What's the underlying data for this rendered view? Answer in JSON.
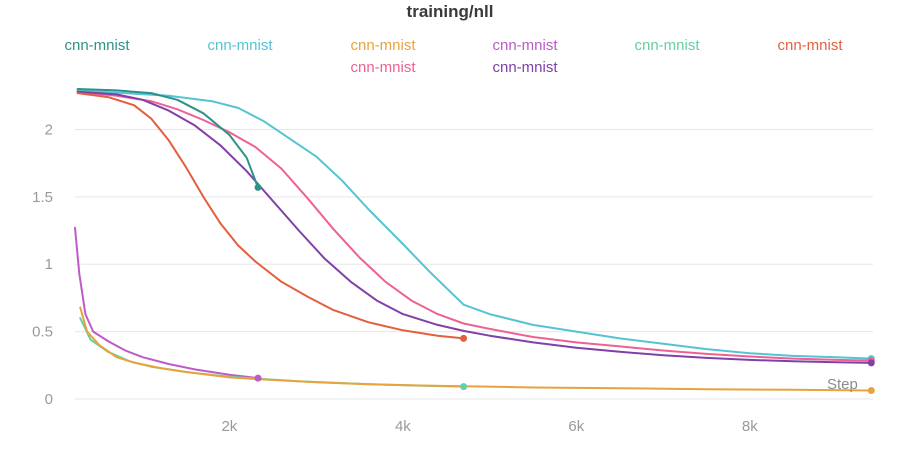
{
  "header": {
    "title": "training/nll"
  },
  "legend": {
    "columns": [
      97,
      240,
      383,
      525,
      667,
      810
    ],
    "items": [
      {
        "label": "cnn-mnist",
        "color": "#2d9287",
        "row": 0,
        "col": 0
      },
      {
        "label": "cnn-mnist",
        "color": "#56c3d4",
        "row": 0,
        "col": 1
      },
      {
        "label": "cnn-mnist",
        "color": "#e8a33c",
        "row": 0,
        "col": 2
      },
      {
        "label": "cnn-mnist",
        "color": "#bd5bc9",
        "row": 0,
        "col": 3
      },
      {
        "label": "cnn-mnist",
        "color": "#67cfa2",
        "row": 0,
        "col": 4
      },
      {
        "label": "cnn-mnist",
        "color": "#e2603f",
        "row": 0,
        "col": 5
      },
      {
        "label": "cnn-mnist",
        "color": "#ee6194",
        "row": 1,
        "col": 2
      },
      {
        "label": "cnn-mnist",
        "color": "#8040a8",
        "row": 1,
        "col": 3
      }
    ]
  },
  "chart_data": {
    "type": "line",
    "title": "training/nll",
    "xlabel": "Step",
    "ylabel": "",
    "x_range": [
      220,
      9420
    ],
    "y_range": [
      0,
      2.33
    ],
    "x_tick_values": [
      2000,
      4000,
      6000,
      8000
    ],
    "x_tick_labels": [
      "2k",
      "4k",
      "6k",
      "8k"
    ],
    "y_tick_values": [
      0,
      0.5,
      1,
      1.5,
      2
    ],
    "y_tick_labels": [
      "0",
      "0.5",
      "1",
      "1.5",
      "2"
    ],
    "grid": "horizontal",
    "legend_position": "top",
    "series": [
      {
        "name": "cnn-mnist",
        "color": "#56c3d4",
        "points": [
          [
            250,
            2.29
          ],
          [
            800,
            2.27
          ],
          [
            1300,
            2.25
          ],
          [
            1800,
            2.21
          ],
          [
            2100,
            2.16
          ],
          [
            2400,
            2.06
          ],
          [
            2700,
            1.93
          ],
          [
            3000,
            1.8
          ],
          [
            3300,
            1.62
          ],
          [
            3600,
            1.41
          ],
          [
            4000,
            1.15
          ],
          [
            4300,
            0.95
          ],
          [
            4700,
            0.7
          ],
          [
            5000,
            0.63
          ],
          [
            5500,
            0.55
          ],
          [
            6000,
            0.5
          ],
          [
            6500,
            0.45
          ],
          [
            7000,
            0.41
          ],
          [
            7500,
            0.37
          ],
          [
            8000,
            0.34
          ],
          [
            8500,
            0.32
          ],
          [
            9000,
            0.31
          ],
          [
            9400,
            0.3
          ]
        ]
      },
      {
        "name": "cnn-mnist",
        "color": "#ee6194",
        "points": [
          [
            250,
            2.28
          ],
          [
            700,
            2.25
          ],
          [
            1100,
            2.21
          ],
          [
            1400,
            2.15
          ],
          [
            1700,
            2.07
          ],
          [
            2000,
            1.98
          ],
          [
            2300,
            1.87
          ],
          [
            2600,
            1.71
          ],
          [
            2900,
            1.49
          ],
          [
            3200,
            1.26
          ],
          [
            3500,
            1.05
          ],
          [
            3800,
            0.87
          ],
          [
            4100,
            0.73
          ],
          [
            4400,
            0.63
          ],
          [
            4700,
            0.56
          ],
          [
            5000,
            0.52
          ],
          [
            5500,
            0.46
          ],
          [
            6000,
            0.42
          ],
          [
            6500,
            0.39
          ],
          [
            7000,
            0.36
          ],
          [
            7500,
            0.335
          ],
          [
            8000,
            0.315
          ],
          [
            8500,
            0.3
          ],
          [
            9000,
            0.29
          ],
          [
            9400,
            0.285
          ]
        ]
      },
      {
        "name": "cnn-mnist",
        "color": "#8040a8",
        "points": [
          [
            250,
            2.28
          ],
          [
            700,
            2.26
          ],
          [
            1000,
            2.22
          ],
          [
            1300,
            2.14
          ],
          [
            1600,
            2.03
          ],
          [
            1900,
            1.88
          ],
          [
            2200,
            1.69
          ],
          [
            2500,
            1.47
          ],
          [
            2800,
            1.25
          ],
          [
            3100,
            1.04
          ],
          [
            3400,
            0.87
          ],
          [
            3700,
            0.73
          ],
          [
            4000,
            0.63
          ],
          [
            4400,
            0.55
          ],
          [
            4700,
            0.505
          ],
          [
            5000,
            0.47
          ],
          [
            5500,
            0.42
          ],
          [
            6000,
            0.38
          ],
          [
            6500,
            0.35
          ],
          [
            7000,
            0.325
          ],
          [
            7500,
            0.305
          ],
          [
            8000,
            0.29
          ],
          [
            8500,
            0.28
          ],
          [
            9000,
            0.273
          ],
          [
            9400,
            0.268
          ]
        ]
      },
      {
        "name": "cnn-mnist",
        "color": "#e2603f",
        "points": [
          [
            250,
            2.27
          ],
          [
            600,
            2.24
          ],
          [
            900,
            2.18
          ],
          [
            1100,
            2.08
          ],
          [
            1300,
            1.92
          ],
          [
            1500,
            1.72
          ],
          [
            1700,
            1.5
          ],
          [
            1900,
            1.3
          ],
          [
            2100,
            1.14
          ],
          [
            2300,
            1.02
          ],
          [
            2600,
            0.87
          ],
          [
            2900,
            0.76
          ],
          [
            3200,
            0.66
          ],
          [
            3600,
            0.57
          ],
          [
            4000,
            0.51
          ],
          [
            4400,
            0.47
          ],
          [
            4700,
            0.45
          ]
        ]
      },
      {
        "name": "cnn-mnist",
        "color": "#2d9287",
        "points": [
          [
            250,
            2.3
          ],
          [
            700,
            2.29
          ],
          [
            1100,
            2.27
          ],
          [
            1400,
            2.22
          ],
          [
            1700,
            2.12
          ],
          [
            2000,
            1.96
          ],
          [
            2200,
            1.79
          ],
          [
            2330,
            1.57
          ]
        ]
      },
      {
        "name": "cnn-mnist",
        "color": "#bd5bc9",
        "points": [
          [
            220,
            1.27
          ],
          [
            270,
            0.93
          ],
          [
            340,
            0.63
          ],
          [
            430,
            0.5
          ],
          [
            600,
            0.43
          ],
          [
            800,
            0.36
          ],
          [
            1000,
            0.31
          ],
          [
            1300,
            0.26
          ],
          [
            1600,
            0.22
          ],
          [
            2000,
            0.18
          ],
          [
            2330,
            0.155
          ]
        ]
      },
      {
        "name": "cnn-mnist",
        "color": "#67cfa2",
        "points": [
          [
            280,
            0.6
          ],
          [
            400,
            0.44
          ],
          [
            600,
            0.35
          ],
          [
            850,
            0.28
          ],
          [
            1100,
            0.24
          ],
          [
            1500,
            0.2
          ],
          [
            2000,
            0.165
          ],
          [
            2400,
            0.148
          ],
          [
            2800,
            0.132
          ],
          [
            3300,
            0.118
          ],
          [
            3800,
            0.106
          ],
          [
            4300,
            0.097
          ],
          [
            4700,
            0.092
          ]
        ]
      },
      {
        "name": "cnn-mnist",
        "color": "#e8a33c",
        "points": [
          [
            280,
            0.68
          ],
          [
            360,
            0.5
          ],
          [
            500,
            0.4
          ],
          [
            700,
            0.31
          ],
          [
            900,
            0.27
          ],
          [
            1200,
            0.23
          ],
          [
            1500,
            0.2
          ],
          [
            2000,
            0.16
          ],
          [
            2400,
            0.145
          ],
          [
            3000,
            0.125
          ],
          [
            3600,
            0.11
          ],
          [
            4200,
            0.1
          ],
          [
            4700,
            0.095
          ],
          [
            5500,
            0.085
          ],
          [
            6500,
            0.08
          ],
          [
            7500,
            0.073
          ],
          [
            8500,
            0.068
          ],
          [
            9400,
            0.063
          ]
        ]
      }
    ]
  }
}
